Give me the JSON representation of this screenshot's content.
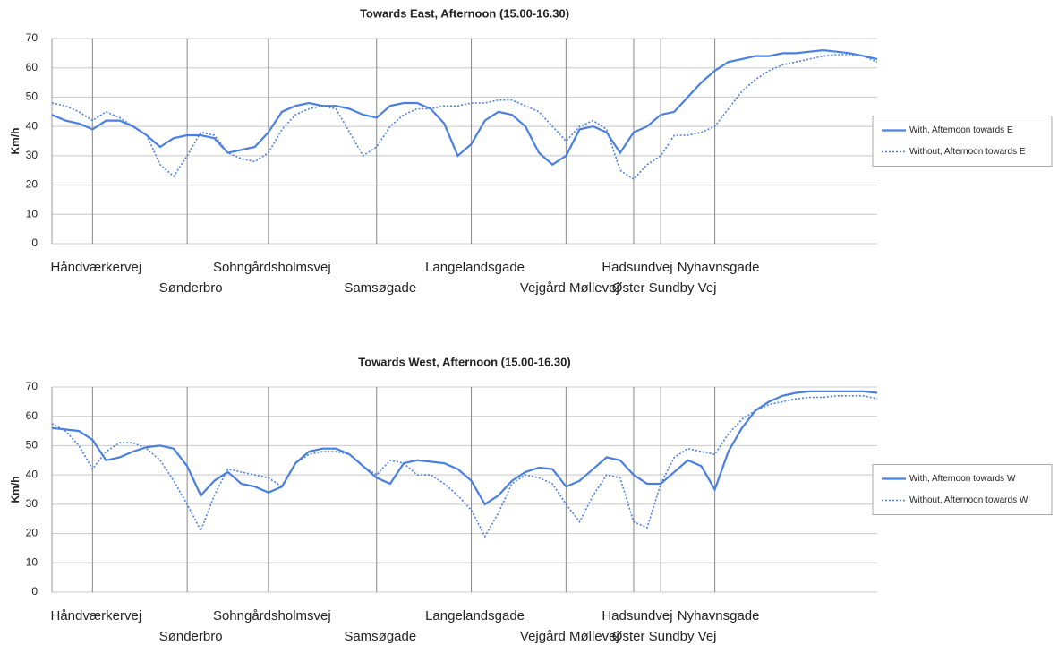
{
  "chart_data": [
    {
      "type": "line",
      "title": "Towards East, Afternoon (15.00-16.30)",
      "y_label": "Km/h",
      "categories": [
        null,
        null,
        null,
        "Håndværkervej",
        null,
        null,
        null,
        null,
        null,
        null,
        "Sønderbro",
        null,
        null,
        null,
        null,
        null,
        "Sohngårdsholmsvej",
        null,
        null,
        null,
        null,
        null,
        null,
        null,
        "Samsøgade",
        null,
        null,
        null,
        null,
        null,
        null,
        "Langelandsgade",
        null,
        null,
        null,
        null,
        null,
        null,
        "Vejgård Møllevej",
        null,
        null,
        null,
        null,
        "Hadsundvej",
        null,
        "Øster Sundby Vej",
        null,
        null,
        null,
        "Nyhavnsgade",
        null,
        null,
        null,
        null,
        null,
        null,
        null,
        null,
        null,
        null,
        null,
        null
      ],
      "series": [
        {
          "name": "With, Afternoon towards E",
          "color": "#4a7fe2",
          "dash": false,
          "values": [
            44,
            42,
            41,
            39,
            42,
            42,
            40,
            37,
            33,
            36,
            37,
            37,
            36,
            31,
            32,
            33,
            38,
            45,
            47,
            48,
            47,
            47,
            46,
            44,
            43,
            47,
            48,
            48,
            46,
            41,
            30,
            34,
            42,
            45,
            44,
            40,
            31,
            27,
            30,
            39,
            40,
            38,
            31,
            38,
            40,
            44,
            45,
            50,
            55,
            59,
            62,
            63,
            64,
            64,
            65,
            65,
            65.5,
            66,
            65.5,
            65,
            64,
            63
          ]
        },
        {
          "name": "Without, Afternoon towards E",
          "color": "#4a7fe2",
          "dash": true,
          "values": [
            48,
            47,
            45,
            42,
            45,
            43,
            40,
            37,
            27,
            23,
            30,
            38,
            37,
            31,
            29,
            28,
            31,
            39,
            44,
            46,
            47,
            46,
            38,
            30,
            33,
            40,
            44,
            46,
            46,
            47,
            47,
            48,
            48,
            49,
            49,
            47,
            45,
            40,
            35,
            40,
            42,
            39,
            25,
            22,
            27,
            30,
            37,
            37,
            38,
            40,
            46,
            52,
            56,
            59,
            61,
            62,
            63,
            64,
            64.5,
            64.5,
            64,
            62
          ]
        }
      ],
      "ylim": [
        0,
        70
      ],
      "yticks": [
        0,
        10,
        20,
        30,
        40,
        50,
        60,
        70
      ],
      "grid": true,
      "legend": "right"
    },
    {
      "type": "line",
      "title": "Towards West, Afternoon (15.00-16.30)",
      "y_label": "Km/h",
      "categories": [
        null,
        null,
        null,
        "Håndværkervej",
        null,
        null,
        null,
        null,
        null,
        null,
        "Sønderbro",
        null,
        null,
        null,
        null,
        null,
        "Sohngårdsholmsvej",
        null,
        null,
        null,
        null,
        null,
        null,
        null,
        "Samsøgade",
        null,
        null,
        null,
        null,
        null,
        null,
        "Langelandsgade",
        null,
        null,
        null,
        null,
        null,
        null,
        "Vejgård Møllevej",
        null,
        null,
        null,
        null,
        "Hadsundvej",
        null,
        "Øster Sundby Vej",
        null,
        null,
        null,
        "Nyhavnsgade",
        null,
        null,
        null,
        null,
        null,
        null,
        null,
        null,
        null,
        null,
        null,
        null
      ],
      "series": [
        {
          "name": "With, Afternoon towards W",
          "color": "#4a7fe2",
          "dash": false,
          "values": [
            56,
            55.5,
            55,
            52,
            45,
            46,
            48,
            49.5,
            50,
            49,
            43,
            33,
            38,
            41,
            37,
            36,
            34,
            36,
            44,
            48,
            49,
            49,
            47,
            43,
            39,
            37,
            44,
            45,
            44.5,
            44,
            42,
            38,
            30,
            33,
            38,
            41,
            42.5,
            42,
            36,
            38,
            42,
            46,
            45,
            40,
            37,
            37,
            41,
            45,
            43,
            35,
            48,
            56,
            62,
            65,
            67,
            68,
            68.5,
            68.5,
            68.5,
            68.5,
            68.5,
            68
          ]
        },
        {
          "name": "Without, Afternoon towards W",
          "color": "#4a7fe2",
          "dash": true,
          "values": [
            57.5,
            55,
            50,
            42,
            48,
            51,
            51,
            49,
            45,
            38,
            30,
            21,
            33,
            42,
            41,
            40,
            39,
            36,
            44,
            47,
            48,
            48,
            47,
            43,
            40,
            45,
            44,
            40,
            40,
            37,
            33,
            28,
            19,
            27,
            37,
            40,
            39,
            37,
            30,
            24,
            33,
            40,
            39,
            24,
            22,
            37,
            46,
            49,
            48,
            47,
            54,
            59,
            62,
            64,
            65,
            66,
            66.5,
            66.5,
            67,
            67,
            67,
            66
          ]
        }
      ],
      "ylim": [
        0,
        70
      ],
      "yticks": [
        0,
        10,
        20,
        30,
        40,
        50,
        60,
        70
      ],
      "grid": true,
      "legend": "right"
    }
  ]
}
